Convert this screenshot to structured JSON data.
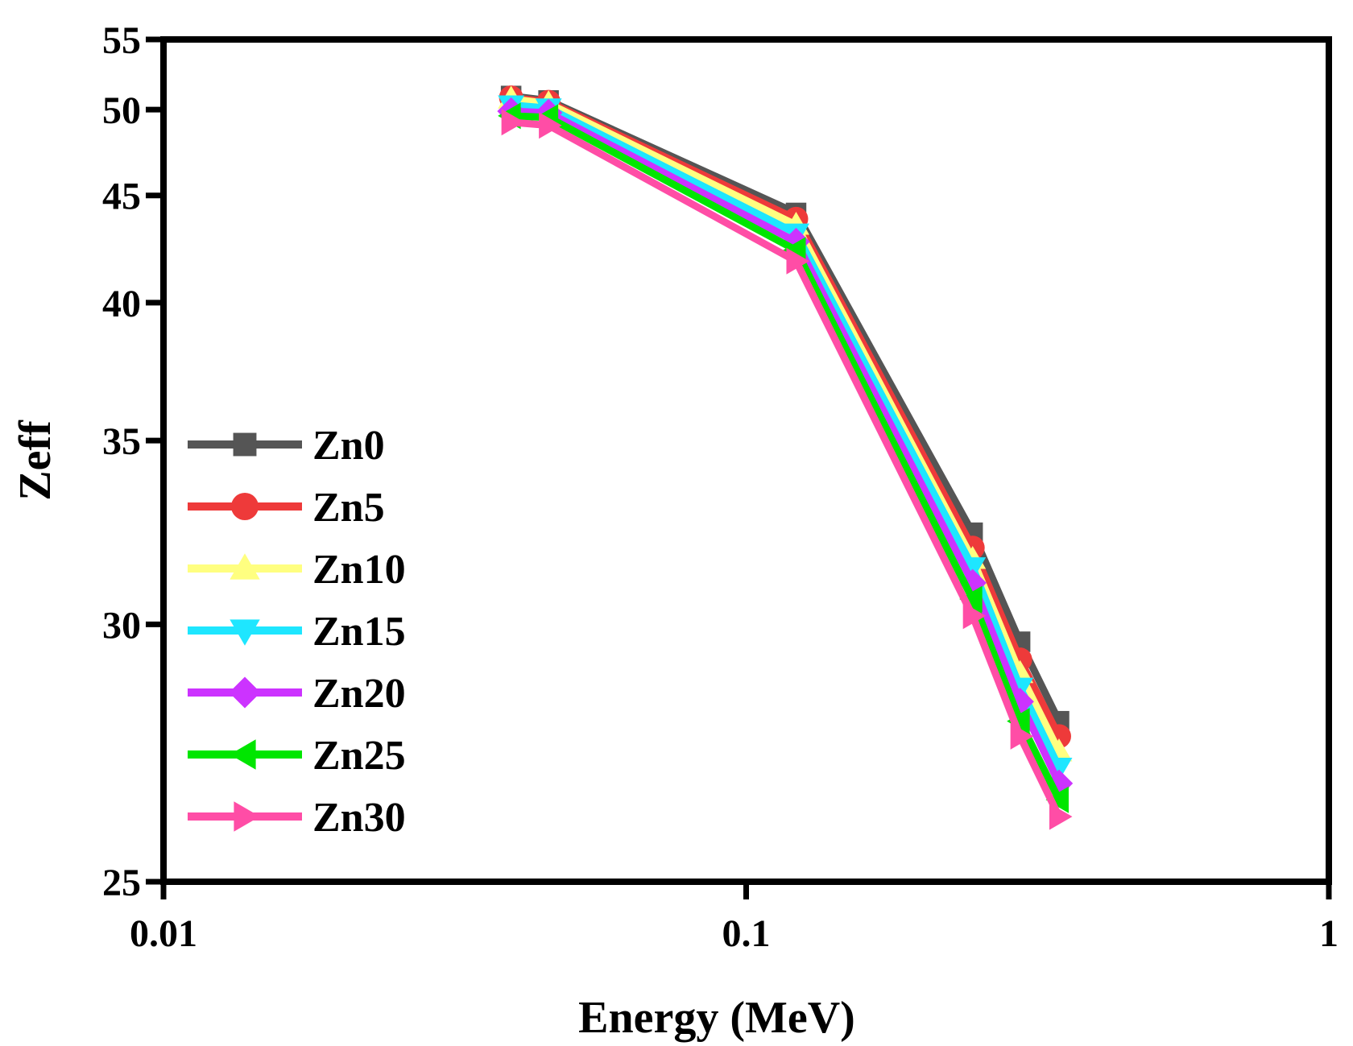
{
  "chart_data": {
    "type": "line",
    "xlabel": "Energy (MeV)",
    "ylabel": "Zeff",
    "xscale": "log",
    "xlim": [
      0.01,
      1
    ],
    "ylim": [
      25,
      55
    ],
    "yscale": "inverse",
    "xticks": [
      {
        "value": 0.01,
        "label": "0.01"
      },
      {
        "value": 0.1,
        "label": "0.1"
      },
      {
        "value": 1,
        "label": "1"
      }
    ],
    "yticks": [
      {
        "value": 25,
        "label": "25"
      },
      {
        "value": 30,
        "label": "30"
      },
      {
        "value": 35,
        "label": "35"
      },
      {
        "value": 40,
        "label": "40"
      },
      {
        "value": 45,
        "label": "45"
      },
      {
        "value": 50,
        "label": "50"
      },
      {
        "value": 55,
        "label": "55"
      }
    ],
    "grid": false,
    "legend_position": "left",
    "x": [
      0.0395,
      0.0458,
      0.1218,
      0.2447,
      0.2952,
      0.3443
    ],
    "series": [
      {
        "name": "Zn0",
        "color": "#555555",
        "marker": "square",
        "values": [
          50.9,
          50.6,
          44.1,
          32.3,
          29.6,
          27.9
        ]
      },
      {
        "name": "Zn5",
        "color": "#ee3a3a",
        "marker": "circle",
        "values": [
          50.8,
          50.5,
          43.8,
          31.9,
          29.2,
          27.6
        ]
      },
      {
        "name": "Zn10",
        "color": "#ffff80",
        "marker": "triangle-up",
        "values": [
          50.7,
          50.4,
          43.5,
          31.6,
          28.9,
          27.3
        ]
      },
      {
        "name": "Zn15",
        "color": "#1ee6ff",
        "marker": "triangle-down",
        "values": [
          50.3,
          50.1,
          43.1,
          31.4,
          28.6,
          27.0
        ]
      },
      {
        "name": "Zn20",
        "color": "#cc33ff",
        "marker": "diamond",
        "values": [
          49.9,
          49.8,
          42.7,
          31.0,
          28.3,
          26.7
        ]
      },
      {
        "name": "Zn25",
        "color": "#00e600",
        "marker": "triangle-left",
        "values": [
          49.6,
          49.5,
          42.3,
          30.6,
          27.9,
          26.4
        ]
      },
      {
        "name": "Zn30",
        "color": "#ff4da6",
        "marker": "triangle-right",
        "values": [
          49.2,
          49.0,
          41.8,
          30.2,
          27.6,
          26.1
        ]
      }
    ]
  }
}
